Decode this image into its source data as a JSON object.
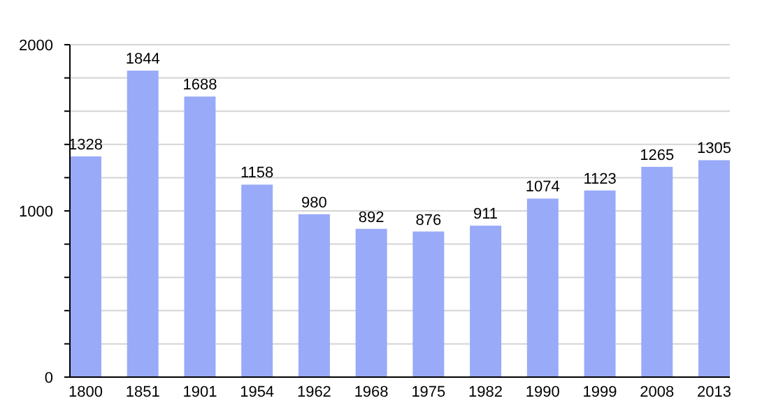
{
  "chart_data": {
    "type": "bar",
    "categories": [
      "1800",
      "1851",
      "1901",
      "1954",
      "1962",
      "1968",
      "1975",
      "1982",
      "1990",
      "1999",
      "2008",
      "2013"
    ],
    "values": [
      1328,
      1844,
      1688,
      1158,
      980,
      892,
      876,
      911,
      1074,
      1123,
      1265,
      1305
    ],
    "color": "#99aaf8",
    "ylim": [
      0,
      2000
    ],
    "yticks": [
      0,
      {
        "value": 200,
        "label": null
      },
      {
        "value": 400,
        "label": null
      },
      {
        "value": 600,
        "label": null
      },
      {
        "value": 800,
        "label": null
      },
      1000,
      {
        "value": 1200,
        "label": null
      },
      {
        "value": 1400,
        "label": null
      },
      {
        "value": 1600,
        "label": null
      },
      {
        "value": 1800,
        "label": null
      },
      2000
    ],
    "grid": true,
    "data_labels": true
  }
}
